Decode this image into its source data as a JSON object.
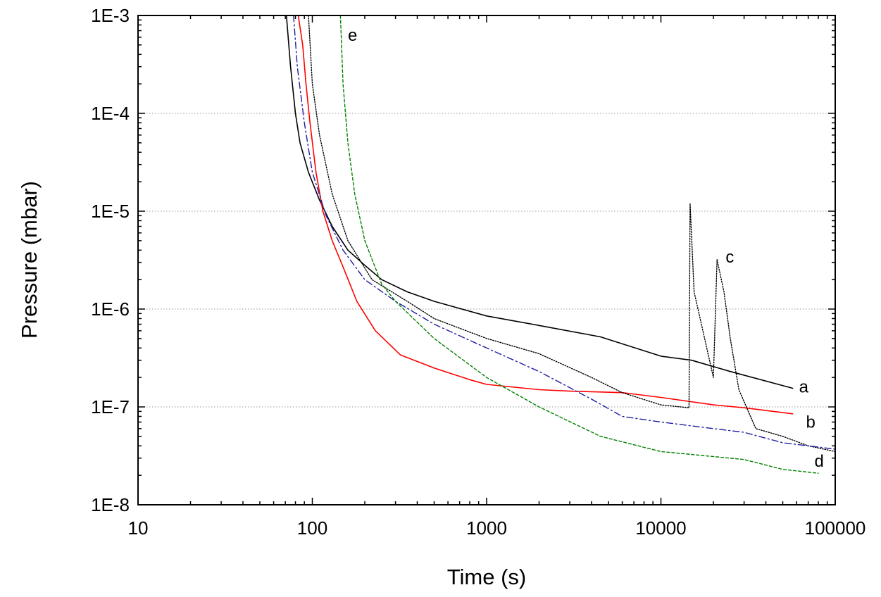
{
  "chart_data": {
    "type": "line",
    "title": "",
    "xlabel": "Time (s)",
    "ylabel": "Pressure (mbar)",
    "xscale": "log",
    "yscale": "log",
    "xlim": [
      10,
      100000
    ],
    "ylim": [
      1e-08,
      0.001
    ],
    "grid": "horizontal dotted at major y ticks",
    "xticks": [
      {
        "value": 10,
        "label": "10"
      },
      {
        "value": 100,
        "label": "100"
      },
      {
        "value": 1000,
        "label": "1000"
      },
      {
        "value": 10000,
        "label": "10000"
      },
      {
        "value": 100000,
        "label": "100000"
      }
    ],
    "yticks": [
      {
        "value": 1e-08,
        "label": "1E-8"
      },
      {
        "value": 1e-07,
        "label": "1E-7"
      },
      {
        "value": 1e-06,
        "label": "1E-6"
      },
      {
        "value": 1e-05,
        "label": "1E-5"
      },
      {
        "value": 0.0001,
        "label": "1E-4"
      },
      {
        "value": 0.001,
        "label": "1E-3"
      }
    ],
    "series": [
      {
        "name": "a",
        "label": "a",
        "color": "#000000",
        "style": "solid",
        "label_at": [
          62000,
          1.6e-07
        ],
        "points": [
          [
            71,
            0.001
          ],
          [
            75,
            0.0003
          ],
          [
            80,
            0.0001
          ],
          [
            85,
            5e-05
          ],
          [
            95,
            2.5e-05
          ],
          [
            110,
            1.3e-05
          ],
          [
            130,
            7e-06
          ],
          [
            160,
            4e-06
          ],
          [
            200,
            2.8e-06
          ],
          [
            250,
            2e-06
          ],
          [
            350,
            1.5e-06
          ],
          [
            500,
            1.2e-06
          ],
          [
            1000,
            8.5e-07
          ],
          [
            2000,
            6.8e-07
          ],
          [
            4500,
            5.2e-07
          ],
          [
            10000,
            3.3e-07
          ],
          [
            15000,
            3e-07
          ],
          [
            25000,
            2.3e-07
          ],
          [
            57000,
            1.55e-07
          ]
        ]
      },
      {
        "name": "b",
        "label": "b",
        "color": "#ff0000",
        "style": "solid",
        "label_at": [
          68000,
          7e-08
        ],
        "points": [
          [
            83,
            0.001
          ],
          [
            88,
            0.0005
          ],
          [
            92,
            0.0002
          ],
          [
            97,
            8e-05
          ],
          [
            105,
            2.5e-05
          ],
          [
            115,
            1e-05
          ],
          [
            130,
            5e-06
          ],
          [
            150,
            2.7e-06
          ],
          [
            180,
            1.2e-06
          ],
          [
            230,
            6e-07
          ],
          [
            320,
            3.4e-07
          ],
          [
            500,
            2.5e-07
          ],
          [
            800,
            1.9e-07
          ],
          [
            1000,
            1.7e-07
          ],
          [
            2000,
            1.5e-07
          ],
          [
            3000,
            1.45e-07
          ],
          [
            6000,
            1.4e-07
          ],
          [
            10000,
            1.25e-07
          ],
          [
            20000,
            1.05e-07
          ],
          [
            30000,
            9.8e-08
          ],
          [
            57000,
            8.5e-08
          ]
        ]
      },
      {
        "name": "c",
        "label": "c",
        "color": "#000000",
        "style": "dotted",
        "label_at": [
          23500,
          3.4e-06
        ],
        "points": [
          [
            95,
            0.001
          ],
          [
            100,
            0.0002
          ],
          [
            110,
            6e-05
          ],
          [
            130,
            1.5e-05
          ],
          [
            160,
            5e-06
          ],
          [
            220,
            2e-06
          ],
          [
            350,
            1.2e-06
          ],
          [
            500,
            8e-07
          ],
          [
            1000,
            5e-07
          ],
          [
            2000,
            3.5e-07
          ],
          [
            4000,
            2e-07
          ],
          [
            6000,
            1.4e-07
          ],
          [
            10000,
            1.05e-07
          ],
          [
            14500,
            9.8e-08
          ],
          [
            14700,
            1.2e-05
          ],
          [
            15500,
            1.5e-06
          ],
          [
            20000,
            2e-07
          ],
          [
            21000,
            3.2e-06
          ],
          [
            23000,
            1.5e-06
          ],
          [
            25000,
            5e-07
          ],
          [
            28000,
            1.5e-07
          ],
          [
            35000,
            6e-08
          ],
          [
            50000,
            5e-08
          ],
          [
            70000,
            4e-08
          ],
          [
            100000,
            3.5e-08
          ]
        ]
      },
      {
        "name": "d",
        "label": "d",
        "color": "#1e1ea0",
        "style": "dashdot",
        "label_at": [
          76000,
          2.8e-08
        ],
        "points": [
          [
            78,
            0.001
          ],
          [
            82,
            0.0003
          ],
          [
            90,
            8e-05
          ],
          [
            100,
            2.5e-05
          ],
          [
            120,
            9e-06
          ],
          [
            150,
            4e-06
          ],
          [
            200,
            2e-06
          ],
          [
            300,
            1.2e-06
          ],
          [
            500,
            7e-07
          ],
          [
            1000,
            4e-07
          ],
          [
            2000,
            2.3e-07
          ],
          [
            4000,
            1.2e-07
          ],
          [
            6000,
            8e-08
          ],
          [
            10000,
            7e-08
          ],
          [
            20000,
            6e-08
          ],
          [
            30000,
            5.5e-08
          ],
          [
            50000,
            4.3e-08
          ],
          [
            70000,
            4e-08
          ],
          [
            100000,
            3.7e-08
          ]
        ]
      },
      {
        "name": "e",
        "label": "e",
        "color": "#008000",
        "style": "dashed",
        "label_at": [
          160,
          0.00063
        ],
        "points": [
          [
            145,
            0.001
          ],
          [
            150,
            0.0002
          ],
          [
            160,
            5e-05
          ],
          [
            175,
            1.5e-05
          ],
          [
            200,
            5e-06
          ],
          [
            250,
            1.8e-06
          ],
          [
            300,
            1.2e-06
          ],
          [
            500,
            5e-07
          ],
          [
            1000,
            2e-07
          ],
          [
            2000,
            1e-07
          ],
          [
            4500,
            5e-08
          ],
          [
            10000,
            3.5e-08
          ],
          [
            30000,
            2.9e-08
          ],
          [
            50000,
            2.3e-08
          ],
          [
            80000,
            2.1e-08
          ]
        ]
      }
    ]
  }
}
